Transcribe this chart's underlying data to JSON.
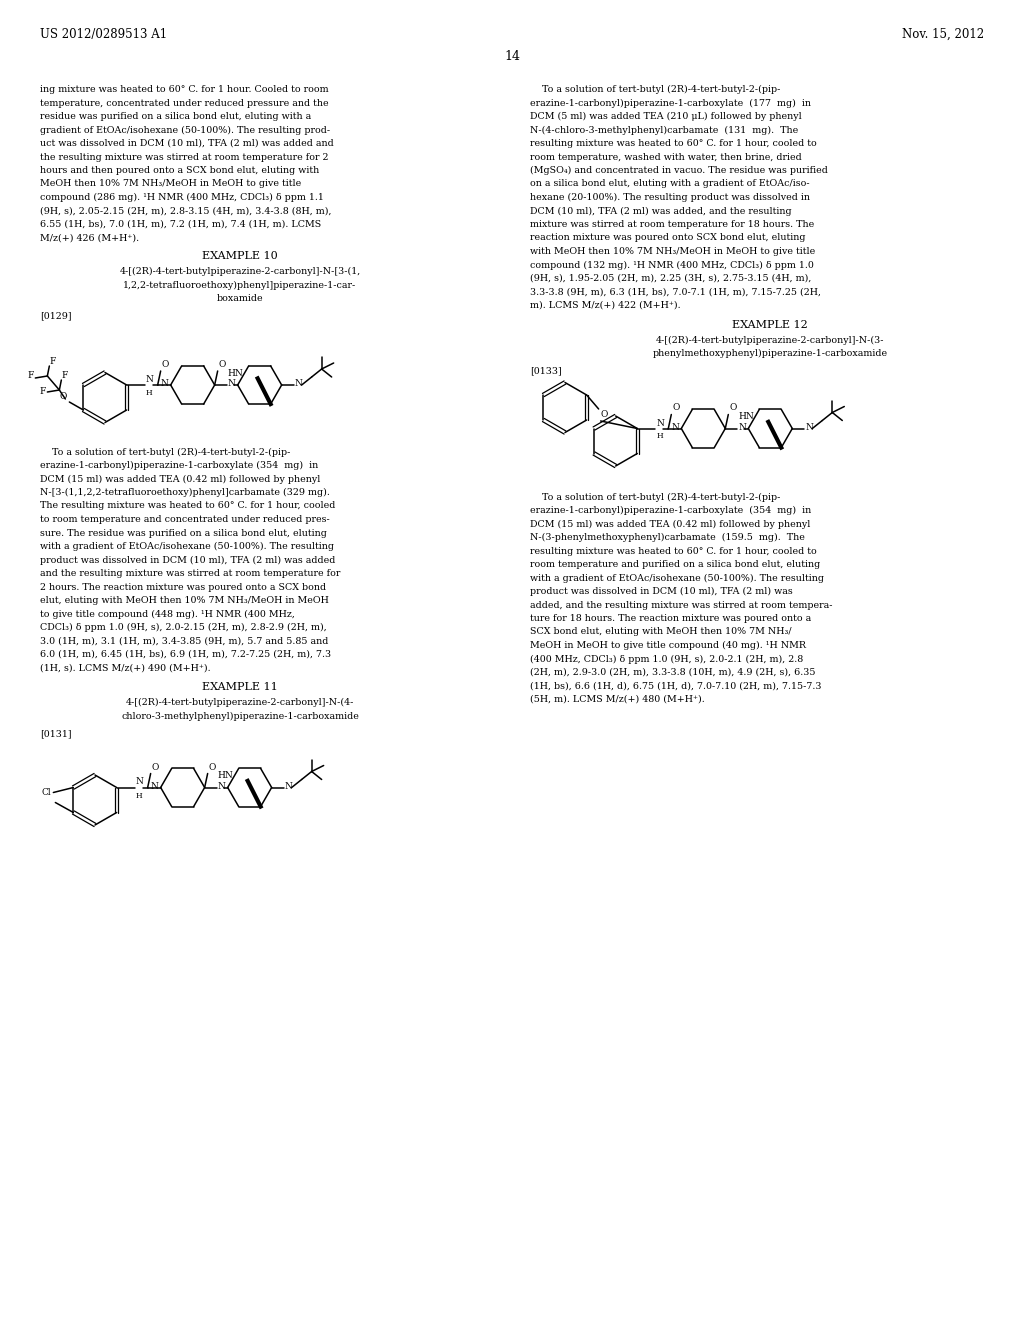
{
  "background_color": "#ffffff",
  "header_left": "US 2012/0289513 A1",
  "header_right": "Nov. 15, 2012",
  "page_number": "14",
  "font_size_body": 6.8,
  "font_size_header": 8.5,
  "font_size_example": 8.0,
  "font_size_pagenum": 9.0,
  "font_size_struct": 6.5,
  "left_intro_text": [
    "ing mixture was heated to 60° C. for 1 hour. Cooled to room",
    "temperature, concentrated under reduced pressure and the",
    "residue was purified on a silica bond elut, eluting with a",
    "gradient of EtOAc/isohexane (50-100%). The resulting prod-",
    "uct was dissolved in DCM (10 ml), TFA (2 ml) was added and",
    "the resulting mixture was stirred at room temperature for 2",
    "hours and then poured onto a SCX bond elut, eluting with",
    "MeOH then 10% 7M NH₃/MeOH in MeOH to give title",
    "compound (286 mg). ¹H NMR (400 MHz, CDCl₃) δ ppm 1.1",
    "(9H, s), 2.05-2.15 (2H, m), 2.8-3.15 (4H, m), 3.4-3.8 (8H, m),",
    "6.55 (1H, bs), 7.0 (1H, m), 7.2 (1H, m), 7.4 (1H, m). LCMS",
    "M/z(+) 426 (M+H⁺)."
  ],
  "example10_title": "EXAMPLE 10",
  "example10_name": [
    "4-[(2R)-4-tert-butylpiperazine-2-carbonyl]-N-[3-(1,",
    "1,2,2-tetrafluoroethoxy)phenyl]piperazine-1-car-",
    "boxamide"
  ],
  "example10_ref": "[0129]",
  "example10_body": [
    "    To a solution of tert-butyl (2R)-4-tert-butyl-2-(pip-",
    "erazine-1-carbonyl)piperazine-1-carboxylate (354  mg)  in",
    "DCM (15 ml) was added TEA (0.42 ml) followed by phenyl",
    "N-[3-(1,1,2,2-tetrafluoroethoxy)phenyl]carbamate (329 mg).",
    "The resulting mixture was heated to 60° C. for 1 hour, cooled",
    "to room temperature and concentrated under reduced pres-",
    "sure. The residue was purified on a silica bond elut, eluting",
    "with a gradient of EtOAc/isohexane (50-100%). The resulting",
    "product was dissolved in DCM (10 ml), TFA (2 ml) was added",
    "and the resulting mixture was stirred at room temperature for",
    "2 hours. The reaction mixture was poured onto a SCX bond",
    "elut, eluting with MeOH then 10% 7M NH₃/MeOH in MeOH",
    "to give title compound (448 mg). ¹H NMR (400 MHz,",
    "CDCl₃) δ ppm 1.0 (9H, s), 2.0-2.15 (2H, m), 2.8-2.9 (2H, m),",
    "3.0 (1H, m), 3.1 (1H, m), 3.4-3.85 (9H, m), 5.7 and 5.85 and",
    "6.0 (1H, m), 6.45 (1H, bs), 6.9 (1H, m), 7.2-7.25 (2H, m), 7.3",
    "(1H, s). LCMS M/z(+) 490 (M+H⁺)."
  ],
  "example11_title": "EXAMPLE 11",
  "example11_name": [
    "4-[(2R)-4-tert-butylpiperazine-2-carbonyl]-N-(4-",
    "chloro-3-methylphenyl)piperazine-1-carboxamide"
  ],
  "example11_ref": "[0131]",
  "right_col_text": [
    "    To a solution of tert-butyl (2R)-4-tert-butyl-2-(pip-",
    "erazine-1-carbonyl)piperazine-1-carboxylate  (177  mg)  in",
    "DCM (5 ml) was added TEA (210 μL) followed by phenyl",
    "N-(4-chloro-3-methylphenyl)carbamate  (131  mg).  The",
    "resulting mixture was heated to 60° C. for 1 hour, cooled to",
    "room temperature, washed with water, then brine, dried",
    "(MgSO₄) and concentrated in vacuo. The residue was purified",
    "on a silica bond elut, eluting with a gradient of EtOAc/iso-",
    "hexane (20-100%). The resulting product was dissolved in",
    "DCM (10 ml), TFA (2 ml) was added, and the resulting",
    "mixture was stirred at room temperature for 18 hours. The",
    "reaction mixture was poured onto SCX bond elut, eluting",
    "with MeOH then 10% 7M NH₃/MeOH in MeOH to give title",
    "compound (132 mg). ¹H NMR (400 MHz, CDCl₃) δ ppm 1.0",
    "(9H, s), 1.95-2.05 (2H, m), 2.25 (3H, s), 2.75-3.15 (4H, m),",
    "3.3-3.8 (9H, m), 6.3 (1H, bs), 7.0-7.1 (1H, m), 7.15-7.25 (2H,",
    "m). LCMS M/z(+) 422 (M+H⁺)."
  ],
  "example12_title": "EXAMPLE 12",
  "example12_name": [
    "4-[(2R)-4-tert-butylpiperazine-2-carbonyl]-N-(3-",
    "phenylmethoxyphenyl)piperazine-1-carboxamide"
  ],
  "example12_ref": "[0133]",
  "example12_body": [
    "    To a solution of tert-butyl (2R)-4-tert-butyl-2-(pip-",
    "erazine-1-carbonyl)piperazine-1-carboxylate  (354  mg)  in",
    "DCM (15 ml) was added TEA (0.42 ml) followed by phenyl",
    "N-(3-phenylmethoxyphenyl)carbamate  (159.5  mg).  The",
    "resulting mixture was heated to 60° C. for 1 hour, cooled to",
    "room temperature and purified on a silica bond elut, eluting",
    "with a gradient of EtOAc/isohexane (50-100%). The resulting",
    "product was dissolved in DCM (10 ml), TFA (2 ml) was",
    "added, and the resulting mixture was stirred at room tempera-",
    "ture for 18 hours. The reaction mixture was poured onto a",
    "SCX bond elut, eluting with MeOH then 10% 7M NH₃/",
    "MeOH in MeOH to give title compound (40 mg). ¹H NMR",
    "(400 MHz, CDCl₃) δ ppm 1.0 (9H, s), 2.0-2.1 (2H, m), 2.8",
    "(2H, m), 2.9-3.0 (2H, m), 3.3-3.8 (10H, m), 4.9 (2H, s), 6.35",
    "(1H, bs), 6.6 (1H, d), 6.75 (1H, d), 7.0-7.10 (2H, m), 7.15-7.3",
    "(5H, m). LCMS M/z(+) 480 (M+H⁺)."
  ]
}
